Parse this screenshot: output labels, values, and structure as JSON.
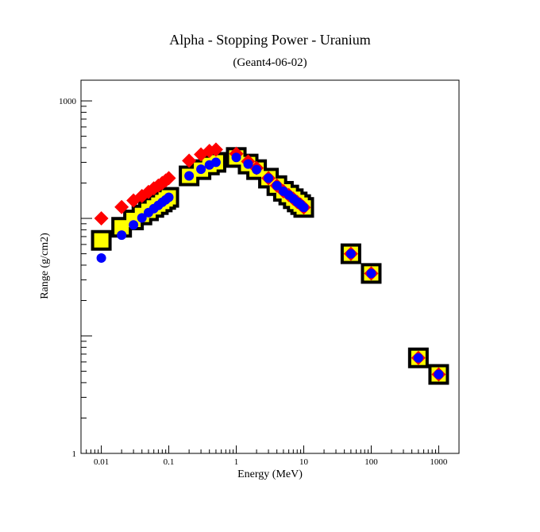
{
  "chart_data": {
    "type": "scatter",
    "title": "Alpha - Stopping Power - Uranium",
    "subtitle": "(Geant4-06-02)",
    "xlabel": "Energy (MeV)",
    "ylabel": "Range (g/cm2)",
    "xscale": "log",
    "yscale": "log",
    "xlim": [
      0.005,
      2000
    ],
    "ylim": [
      1,
      1500
    ],
    "x_ticks": [
      "0.01",
      "0.1",
      "1",
      "10",
      "100",
      "1000"
    ],
    "x_tick_values": [
      0.01,
      0.1,
      1,
      10,
      100,
      1000
    ],
    "y_ticks": [
      "1",
      "1000"
    ],
    "y_tick_values": [
      1,
      1000
    ],
    "grid": false,
    "series": [
      {
        "marker": "filled-square-black",
        "color": "#000000",
        "x": [
          0.01,
          0.02,
          0.03,
          0.04,
          0.05,
          0.06,
          0.07,
          0.08,
          0.09,
          0.1,
          0.2,
          0.3,
          0.4,
          0.5,
          1.0,
          1.5,
          2.0,
          3.0,
          4.0,
          5.0,
          6.0,
          7.0,
          8.0,
          9.0,
          10.0,
          50,
          100,
          500,
          1000
        ],
        "y": [
          65,
          84,
          97,
          107,
          116,
          124,
          131,
          138,
          145,
          151,
          230,
          260,
          285,
          300,
          330,
          290,
          260,
          220,
          190,
          170,
          158,
          147,
          138,
          131,
          124,
          50,
          34,
          6.5,
          4.7
        ]
      },
      {
        "marker": "filled-square-yellow",
        "color": "#ffff00",
        "x": [
          0.01,
          0.02,
          0.03,
          0.04,
          0.05,
          0.06,
          0.07,
          0.08,
          0.09,
          0.1,
          0.2,
          0.3,
          0.4,
          0.5,
          1.0,
          1.5,
          2.0,
          3.0,
          4.0,
          5.0,
          6.0,
          7.0,
          8.0,
          9.0,
          10.0,
          50,
          100,
          500,
          1000
        ],
        "y": [
          65,
          84,
          97,
          107,
          116,
          124,
          131,
          138,
          145,
          151,
          230,
          260,
          285,
          300,
          330,
          290,
          260,
          220,
          190,
          170,
          158,
          147,
          138,
          131,
          124,
          50,
          34,
          6.5,
          4.7
        ]
      },
      {
        "marker": "diamond",
        "color": "#ff0000",
        "x": [
          0.01,
          0.02,
          0.03,
          0.04,
          0.05,
          0.06,
          0.07,
          0.08,
          0.09,
          0.1,
          0.2,
          0.3,
          0.4,
          0.5,
          1.0,
          1.5,
          2.0,
          3.0,
          4.0,
          5.0,
          6.0,
          7.0,
          8.0,
          9.0,
          10.0,
          50,
          100,
          500,
          1000
        ],
        "y": [
          100,
          125,
          142,
          155,
          168,
          180,
          190,
          200,
          210,
          220,
          310,
          350,
          375,
          385,
          355,
          305,
          268,
          220,
          190,
          170,
          158,
          147,
          138,
          131,
          124,
          50,
          34,
          6.5,
          4.7
        ]
      },
      {
        "marker": "circle",
        "color": "#0000ff",
        "x": [
          0.01,
          0.02,
          0.03,
          0.04,
          0.05,
          0.06,
          0.07,
          0.08,
          0.09,
          0.1,
          0.2,
          0.3,
          0.4,
          0.5,
          1.0,
          1.5,
          2.0,
          3.0,
          4.0,
          5.0,
          6.0,
          7.0,
          8.0,
          9.0,
          10.0,
          50,
          100,
          500,
          1000
        ],
        "y": [
          46,
          72,
          88,
          101,
          112,
          121,
          129,
          137,
          144,
          151,
          230,
          262,
          285,
          300,
          330,
          290,
          260,
          220,
          190,
          170,
          158,
          147,
          138,
          131,
          124,
          50,
          34,
          6.5,
          4.7
        ]
      }
    ]
  }
}
